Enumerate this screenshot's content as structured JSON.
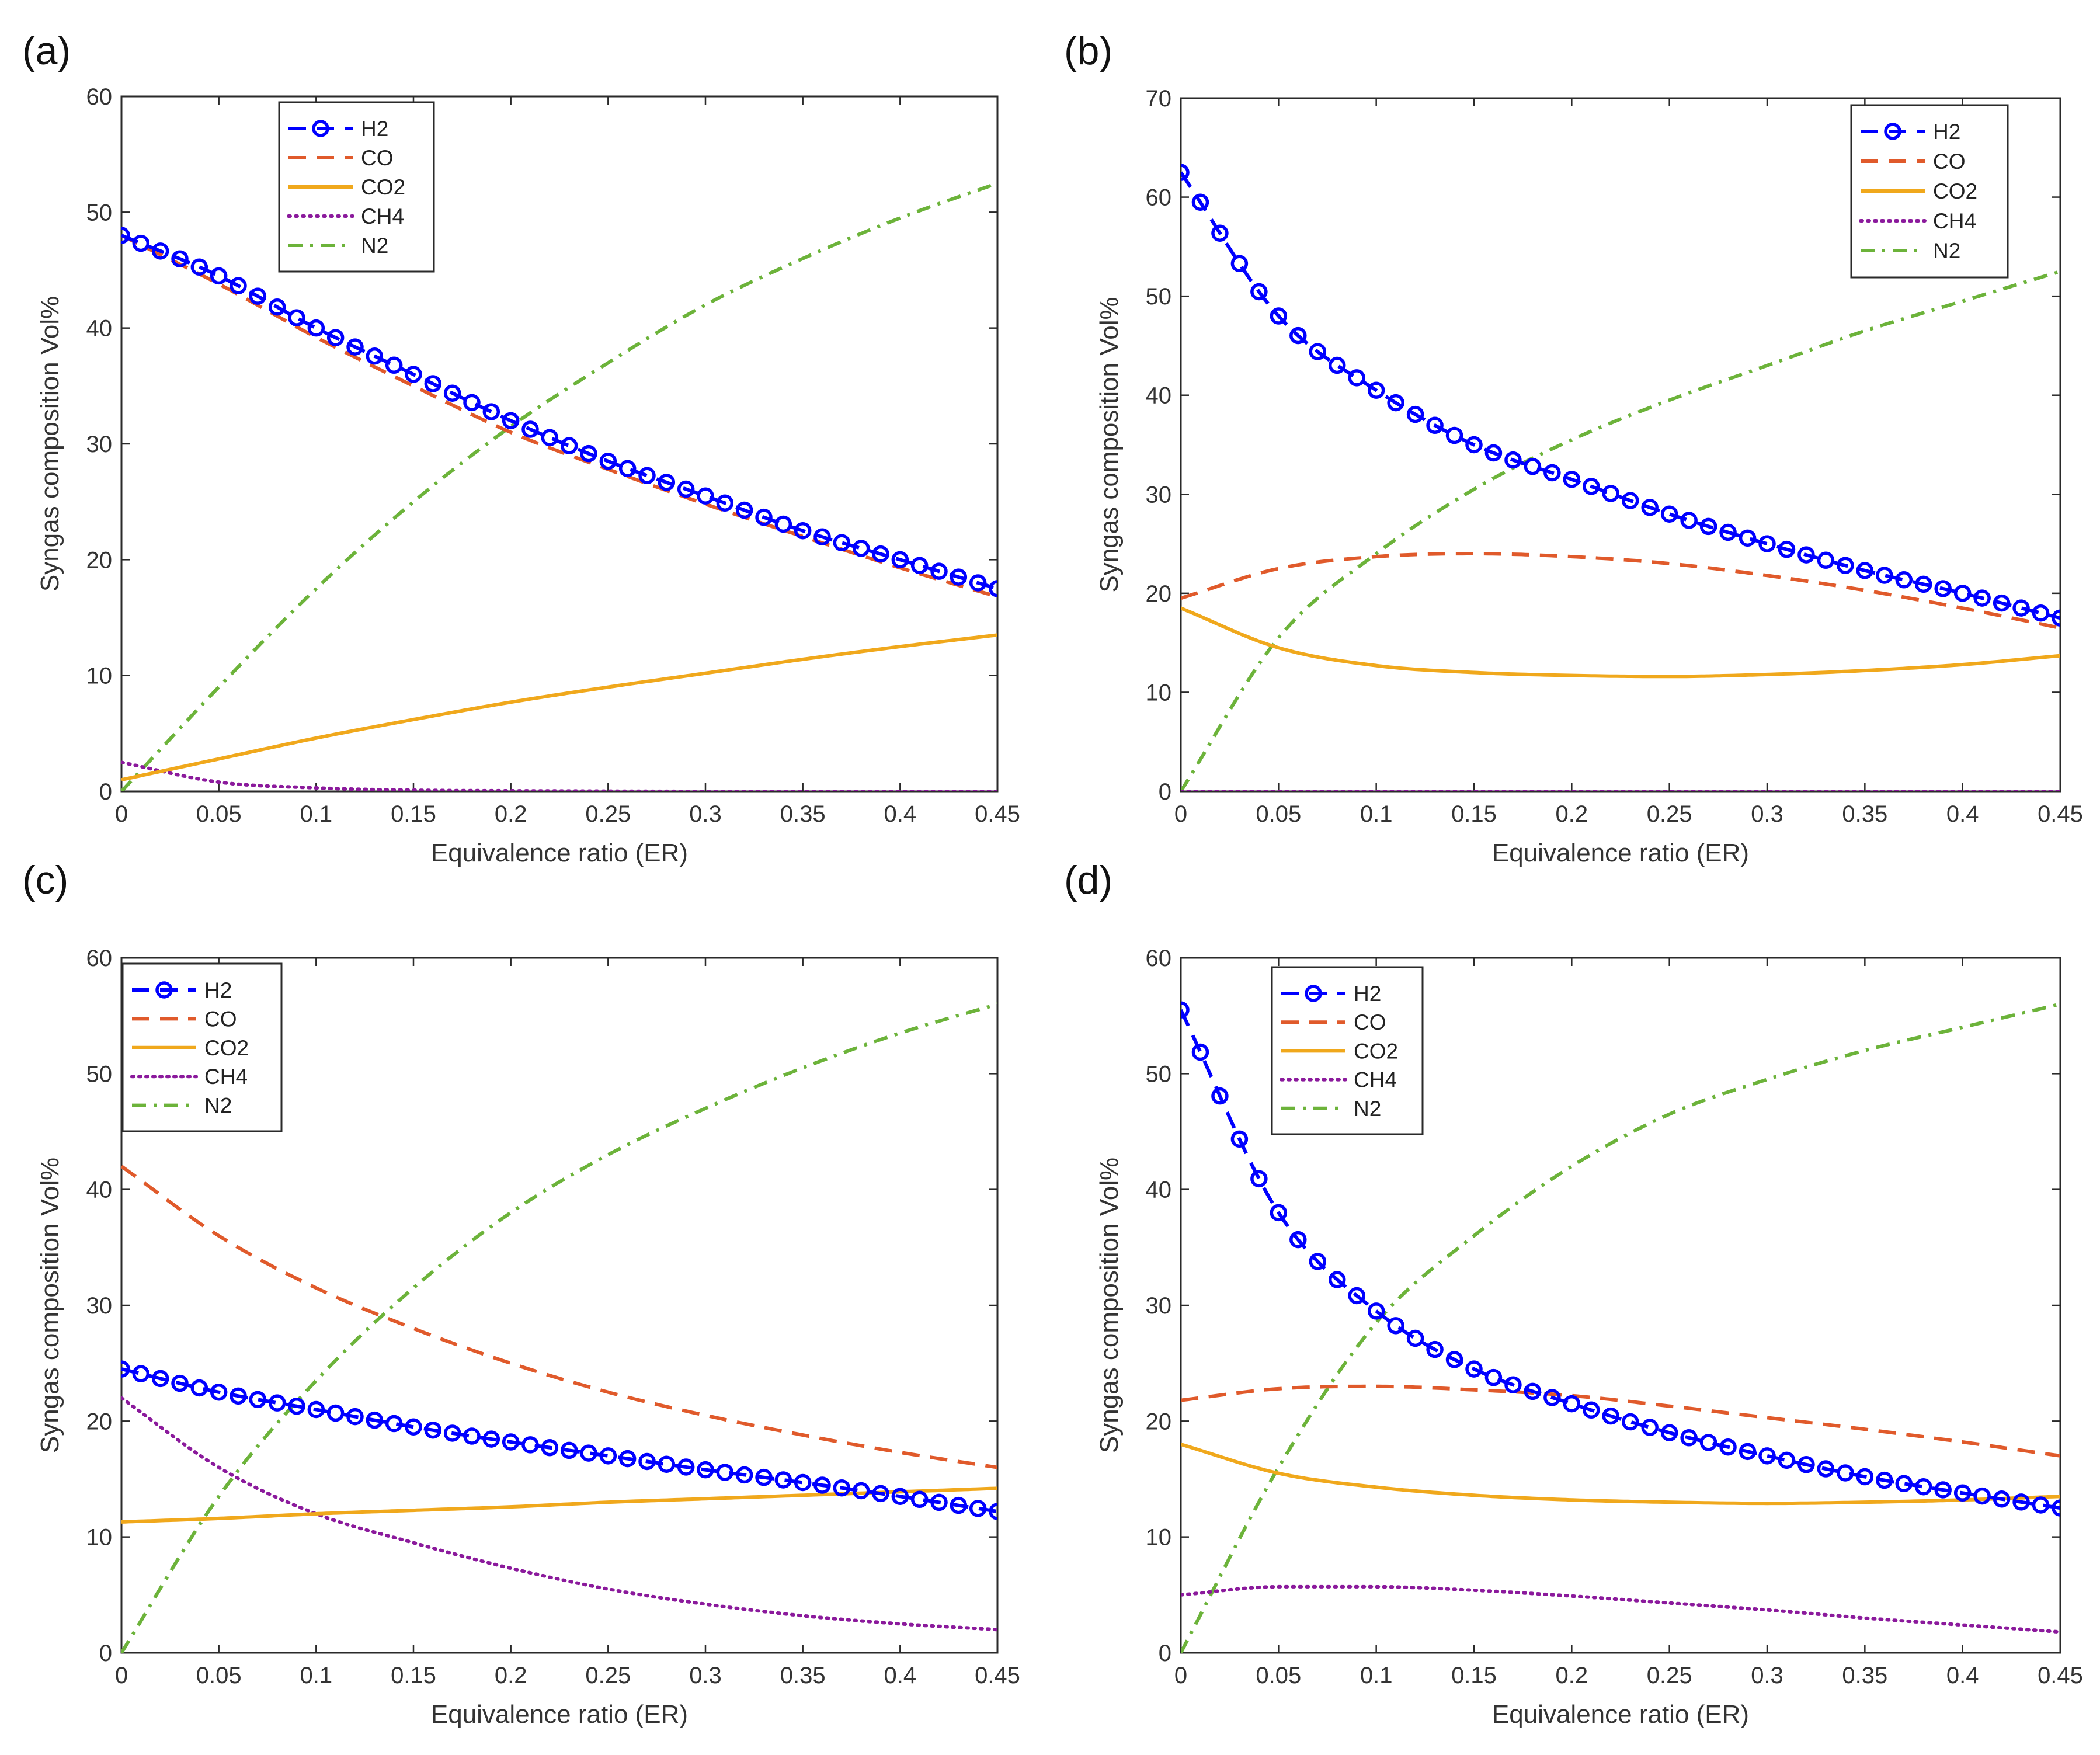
{
  "figure": {
    "xlabel": "Equivalence ratio (ER)",
    "ylabel": "Syngas composition Vol%"
  },
  "series_styles": {
    "H2": {
      "color": "#0000ff",
      "style": "dash-circle"
    },
    "CO": {
      "color": "#e05a2b",
      "style": "dashed"
    },
    "CO2": {
      "color": "#f0a81c",
      "style": "solid"
    },
    "CH4": {
      "color": "#8b1a9c",
      "style": "dotted"
    },
    "N2": {
      "color": "#6cb33a",
      "style": "dashdot"
    }
  },
  "chart_data": [
    {
      "type": "line",
      "panel": "(a)",
      "xlabel": "Equivalence ratio (ER)",
      "ylabel": "Syngas composition Vol%",
      "xlim": [
        0,
        0.45
      ],
      "ylim": [
        0,
        60
      ],
      "xticks": [
        "0",
        "0.05",
        "0.1",
        "0.15",
        "0.2",
        "0.25",
        "0.3",
        "0.35",
        "0.4",
        "0.45"
      ],
      "yticks": [
        "0",
        "10",
        "20",
        "30",
        "40",
        "50",
        "60"
      ],
      "legend": [
        "H2",
        "CO",
        "CO2",
        "CH4",
        "N2"
      ],
      "legend_position": "top-left",
      "x": [
        0,
        0.05,
        0.1,
        0.15,
        0.2,
        0.25,
        0.3,
        0.35,
        0.4,
        0.45
      ],
      "series": [
        {
          "name": "H2",
          "values": [
            48,
            44.5,
            40,
            36,
            32,
            28.5,
            25.5,
            22.5,
            20,
            17.5
          ]
        },
        {
          "name": "CO",
          "values": [
            48,
            43.8,
            39.2,
            35,
            31,
            27.8,
            24.8,
            22,
            19.3,
            16.8
          ]
        },
        {
          "name": "CO2",
          "values": [
            1,
            2.8,
            4.6,
            6.2,
            7.7,
            9,
            10.2,
            11.4,
            12.5,
            13.5
          ]
        },
        {
          "name": "CH4",
          "values": [
            2.5,
            0.8,
            0.3,
            0.1,
            0.05,
            0.02,
            0,
            0,
            0,
            0
          ]
        },
        {
          "name": "N2",
          "values": [
            0,
            9,
            17.5,
            25,
            31.5,
            37,
            42,
            46,
            49.5,
            52.5
          ]
        }
      ]
    },
    {
      "type": "line",
      "panel": "(b)",
      "xlabel": "Equivalence ratio (ER)",
      "ylabel": "Syngas composition Vol%",
      "xlim": [
        0,
        0.45
      ],
      "ylim": [
        0,
        70
      ],
      "xticks": [
        "0",
        "0.05",
        "0.1",
        "0.15",
        "0.2",
        "0.25",
        "0.3",
        "0.35",
        "0.4",
        "0.45"
      ],
      "yticks": [
        "0",
        "10",
        "20",
        "30",
        "40",
        "50",
        "60",
        "70"
      ],
      "legend": [
        "H2",
        "CO",
        "CO2",
        "CH4",
        "N2"
      ],
      "legend_position": "top-right",
      "x": [
        0,
        0.05,
        0.1,
        0.15,
        0.2,
        0.25,
        0.3,
        0.35,
        0.4,
        0.45
      ],
      "series": [
        {
          "name": "H2",
          "values": [
            62.5,
            48,
            40.5,
            35,
            31.5,
            28,
            25,
            22.3,
            20,
            17.5
          ]
        },
        {
          "name": "CO",
          "values": [
            19.5,
            22.5,
            23.7,
            24,
            23.7,
            23,
            21.8,
            20.3,
            18.5,
            16.5
          ]
        },
        {
          "name": "CO2",
          "values": [
            18.5,
            14.5,
            12.7,
            12,
            11.7,
            11.6,
            11.8,
            12.2,
            12.8,
            13.7
          ]
        },
        {
          "name": "CH4",
          "values": [
            0,
            0,
            0,
            0,
            0,
            0,
            0,
            0,
            0,
            0
          ]
        },
        {
          "name": "N2",
          "values": [
            0,
            15.5,
            24,
            30.5,
            35.5,
            39.5,
            43,
            46.5,
            49.5,
            52.5
          ]
        }
      ]
    },
    {
      "type": "line",
      "panel": "(c)",
      "xlabel": "Equivalence ratio (ER)",
      "ylabel": "Syngas composition Vol%",
      "xlim": [
        0,
        0.45
      ],
      "ylim": [
        0,
        60
      ],
      "xticks": [
        "0",
        "0.05",
        "0.1",
        "0.15",
        "0.2",
        "0.25",
        "0.3",
        "0.35",
        "0.4",
        "0.45"
      ],
      "yticks": [
        "0",
        "10",
        "20",
        "30",
        "40",
        "50",
        "60"
      ],
      "legend": [
        "H2",
        "CO",
        "CO2",
        "CH4",
        "N2"
      ],
      "legend_position": "top-left",
      "x": [
        0,
        0.05,
        0.1,
        0.15,
        0.2,
        0.25,
        0.3,
        0.35,
        0.4,
        0.45
      ],
      "series": [
        {
          "name": "H2",
          "values": [
            24.5,
            22.5,
            21,
            19.5,
            18.2,
            17,
            15.8,
            14.7,
            13.5,
            12.2
          ]
        },
        {
          "name": "CO",
          "values": [
            42,
            36,
            31.5,
            28,
            25,
            22.5,
            20.5,
            18.8,
            17.3,
            16
          ]
        },
        {
          "name": "CH4",
          "values": [
            22,
            16,
            12,
            9.5,
            7.3,
            5.5,
            4.2,
            3.2,
            2.5,
            2
          ]
        },
        {
          "name": "CO2",
          "values": [
            11.3,
            11.6,
            12,
            12.3,
            12.6,
            13,
            13.3,
            13.6,
            13.9,
            14.2
          ]
        },
        {
          "name": "N2",
          "values": [
            0,
            13.5,
            23.5,
            31.5,
            38,
            43,
            47,
            50.5,
            53.5,
            56
          ]
        }
      ]
    },
    {
      "type": "line",
      "panel": "(d)",
      "xlabel": "Equivalence ratio (ER)",
      "ylabel": "Syngas composition Vol%",
      "xlim": [
        0,
        0.45
      ],
      "ylim": [
        0,
        60
      ],
      "xticks": [
        "0",
        "0.05",
        "0.1",
        "0.15",
        "0.2",
        "0.25",
        "0.3",
        "0.35",
        "0.4",
        "0.45"
      ],
      "yticks": [
        "0",
        "10",
        "20",
        "30",
        "40",
        "50",
        "60"
      ],
      "legend": [
        "H2",
        "CO",
        "CO2",
        "CH4",
        "N2"
      ],
      "legend_position": "top-left",
      "x": [
        0,
        0.05,
        0.1,
        0.15,
        0.2,
        0.25,
        0.3,
        0.35,
        0.4,
        0.45
      ],
      "series": [
        {
          "name": "H2",
          "values": [
            55.5,
            38,
            29.5,
            24.5,
            21.5,
            19,
            17,
            15.2,
            13.8,
            12.5
          ]
        },
        {
          "name": "CO",
          "values": [
            21.8,
            22.8,
            23,
            22.7,
            22.2,
            21.3,
            20.3,
            19.3,
            18.2,
            17
          ]
        },
        {
          "name": "CO2",
          "values": [
            18,
            15.5,
            14.3,
            13.6,
            13.2,
            13,
            12.9,
            13,
            13.2,
            13.5
          ]
        },
        {
          "name": "CH4",
          "values": [
            5,
            5.7,
            5.7,
            5.4,
            4.9,
            4.3,
            3.7,
            3,
            2.4,
            1.8
          ]
        },
        {
          "name": "N2",
          "values": [
            0,
            16,
            28.5,
            36,
            42,
            46.5,
            49.5,
            52,
            54,
            56
          ]
        }
      ]
    }
  ]
}
